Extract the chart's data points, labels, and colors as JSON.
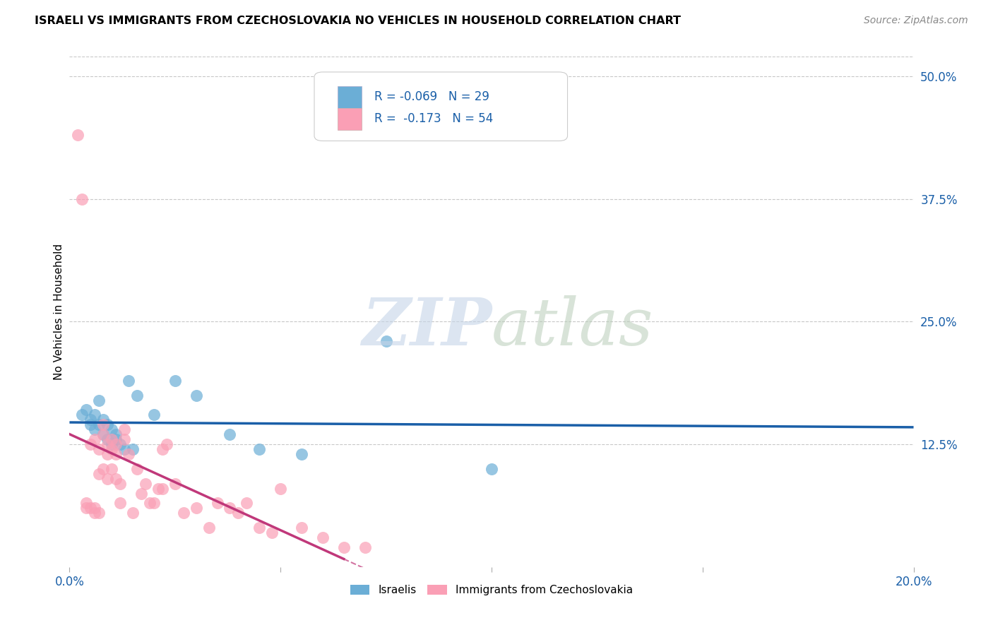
{
  "title": "ISRAELI VS IMMIGRANTS FROM CZECHOSLOVAKIA NO VEHICLES IN HOUSEHOLD CORRELATION CHART",
  "source": "Source: ZipAtlas.com",
  "ylabel": "No Vehicles in Household",
  "xlim": [
    0.0,
    0.2
  ],
  "ylim": [
    0.0,
    0.52
  ],
  "x_ticks": [
    0.0,
    0.05,
    0.1,
    0.15,
    0.2
  ],
  "x_tick_labels": [
    "0.0%",
    "",
    "",
    "",
    "20.0%"
  ],
  "y_ticks_right": [
    0.125,
    0.25,
    0.375,
    0.5
  ],
  "y_tick_labels_right": [
    "12.5%",
    "25.0%",
    "37.5%",
    "50.0%"
  ],
  "color_israeli": "#6baed6",
  "color_czech": "#fa9fb5",
  "color_blue_line": "#1a5fa8",
  "color_pink_line": "#c0387a",
  "scatter_israeli_x": [
    0.003,
    0.004,
    0.005,
    0.005,
    0.006,
    0.006,
    0.007,
    0.007,
    0.008,
    0.008,
    0.009,
    0.009,
    0.01,
    0.01,
    0.011,
    0.011,
    0.012,
    0.013,
    0.014,
    0.015,
    0.016,
    0.02,
    0.025,
    0.03,
    0.038,
    0.045,
    0.055,
    0.075,
    0.1
  ],
  "scatter_israeli_y": [
    0.155,
    0.16,
    0.145,
    0.15,
    0.14,
    0.155,
    0.145,
    0.17,
    0.135,
    0.15,
    0.13,
    0.145,
    0.125,
    0.14,
    0.13,
    0.135,
    0.125,
    0.12,
    0.19,
    0.12,
    0.175,
    0.155,
    0.19,
    0.175,
    0.135,
    0.12,
    0.115,
    0.23,
    0.1
  ],
  "scatter_czech_x": [
    0.002,
    0.003,
    0.004,
    0.004,
    0.005,
    0.005,
    0.006,
    0.006,
    0.006,
    0.007,
    0.007,
    0.007,
    0.008,
    0.008,
    0.008,
    0.009,
    0.009,
    0.009,
    0.01,
    0.01,
    0.01,
    0.011,
    0.011,
    0.011,
    0.012,
    0.012,
    0.013,
    0.013,
    0.014,
    0.015,
    0.016,
    0.017,
    0.018,
    0.019,
    0.02,
    0.021,
    0.022,
    0.022,
    0.023,
    0.025,
    0.027,
    0.03,
    0.033,
    0.035,
    0.038,
    0.04,
    0.042,
    0.045,
    0.048,
    0.05,
    0.055,
    0.06,
    0.065,
    0.07
  ],
  "scatter_czech_y": [
    0.44,
    0.375,
    0.06,
    0.065,
    0.125,
    0.06,
    0.13,
    0.06,
    0.055,
    0.12,
    0.095,
    0.055,
    0.145,
    0.135,
    0.1,
    0.125,
    0.115,
    0.09,
    0.13,
    0.12,
    0.1,
    0.125,
    0.115,
    0.09,
    0.085,
    0.065,
    0.14,
    0.13,
    0.115,
    0.055,
    0.1,
    0.075,
    0.085,
    0.065,
    0.065,
    0.08,
    0.12,
    0.08,
    0.125,
    0.085,
    0.055,
    0.06,
    0.04,
    0.065,
    0.06,
    0.055,
    0.065,
    0.04,
    0.035,
    0.08,
    0.04,
    0.03,
    0.02,
    0.02
  ]
}
